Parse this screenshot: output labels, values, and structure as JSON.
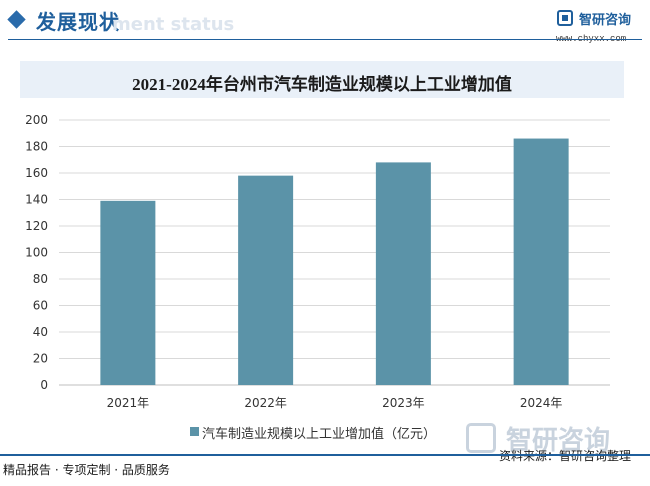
{
  "header": {
    "title": "发展现状",
    "ghost_text": "ment status",
    "logo_text": "智研咨询",
    "logo_url": "www.chyxx.com"
  },
  "watermark": {
    "text": "智研咨询"
  },
  "footer": {
    "left": "精品报告 · 专项定制 · 品质服务",
    "source": "资料来源：智研咨询整理"
  },
  "colors": {
    "bar": "#5b93a8",
    "accent": "#1f5f9c",
    "grid": "#d9d9d9"
  },
  "chart_data": {
    "type": "bar",
    "title": "2021-2024年台州市汽车制造业规模以上工业增加值",
    "categories": [
      "2021年",
      "2022年",
      "2023年",
      "2024年"
    ],
    "series": [
      {
        "name": "汽车制造业规模以上工业增加值（亿元）",
        "values": [
          139,
          158,
          168,
          186
        ]
      }
    ],
    "ylim": [
      0,
      200
    ],
    "yticks": [
      "0",
      "20",
      "40",
      "60",
      "80",
      "100",
      "120",
      "140",
      "160",
      "180",
      "200"
    ],
    "grid": true,
    "legend_position": "bottom"
  }
}
